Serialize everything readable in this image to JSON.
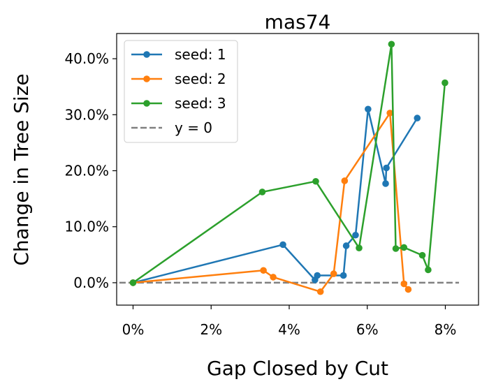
{
  "chart_data": {
    "type": "line",
    "title": "mas74",
    "xlabel": "Gap Closed by Cut",
    "ylabel": "Change in Tree Size",
    "xlim": [
      -0.0042,
      0.0885
    ],
    "ylim": [
      -0.04,
      0.445
    ],
    "xticks": [
      0,
      0.02,
      0.04,
      0.06,
      0.08
    ],
    "xtick_labels": [
      "0%",
      "2%",
      "4%",
      "6%",
      "8%"
    ],
    "yticks": [
      0,
      0.1,
      0.2,
      0.3,
      0.4
    ],
    "ytick_labels": [
      "0.0%",
      "10.0%",
      "20.0%",
      "30.0%",
      "40.0%"
    ],
    "grid": false,
    "legend_position": "top-left",
    "series": [
      {
        "name": "seed: 1",
        "color": "#1f77b4",
        "x": [
          0.0,
          0.0384,
          0.0466,
          0.0472,
          0.0539,
          0.0546,
          0.057,
          0.0602,
          0.0647,
          0.0649,
          0.0728
        ],
        "y": [
          0.0,
          0.068,
          0.005,
          0.013,
          0.013,
          0.066,
          0.085,
          0.31,
          0.177,
          0.205,
          0.294
        ]
      },
      {
        "name": "seed: 2",
        "color": "#ff7f0e",
        "x": [
          0.0,
          0.0334,
          0.0359,
          0.048,
          0.0514,
          0.0542,
          0.0658,
          0.0694,
          0.0705
        ],
        "y": [
          0.0,
          0.022,
          0.01,
          -0.016,
          0.016,
          0.182,
          0.303,
          -0.002,
          -0.012
        ]
      },
      {
        "name": "seed: 3",
        "color": "#2ca02c",
        "x": [
          0.0,
          0.0331,
          0.0468,
          0.0579,
          0.0662,
          0.0673,
          0.0694,
          0.0741,
          0.0756,
          0.0799
        ],
        "y": [
          0.0,
          0.162,
          0.181,
          0.062,
          0.426,
          0.061,
          0.063,
          0.049,
          0.023,
          0.357
        ]
      }
    ],
    "reference_line": {
      "label": "y = 0",
      "value": 0,
      "color": "#808080",
      "style": "dashed",
      "x_range": [
        -0.0035,
        0.0835
      ]
    }
  }
}
